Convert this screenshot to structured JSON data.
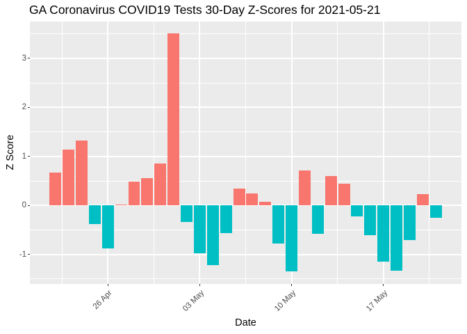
{
  "chart_data": {
    "type": "bar",
    "title": "GA Coronavirus COVID19 Tests 30-Day Z-Scores for 2021-05-21",
    "xlabel": "Date",
    "ylabel": "Z Score",
    "x": [
      "2021-04-22",
      "2021-04-23",
      "2021-04-24",
      "2021-04-25",
      "2021-04-26",
      "2021-04-27",
      "2021-04-28",
      "2021-04-29",
      "2021-04-30",
      "2021-05-01",
      "2021-05-02",
      "2021-05-03",
      "2021-05-04",
      "2021-05-05",
      "2021-05-06",
      "2021-05-07",
      "2021-05-08",
      "2021-05-09",
      "2021-05-10",
      "2021-05-11",
      "2021-05-12",
      "2021-05-13",
      "2021-05-14",
      "2021-05-15",
      "2021-05-16",
      "2021-05-17",
      "2021-05-18",
      "2021-05-19",
      "2021-05-20",
      "2021-05-21"
    ],
    "values": [
      0.67,
      1.14,
      1.33,
      -0.38,
      -0.88,
      0.02,
      0.49,
      0.56,
      0.86,
      3.51,
      -0.33,
      -0.97,
      -1.22,
      -0.57,
      0.35,
      0.25,
      0.07,
      -0.77,
      -1.34,
      0.71,
      -0.58,
      0.6,
      0.45,
      -0.23,
      -0.61,
      -1.14,
      -1.33,
      -0.71,
      0.23,
      -0.25
    ],
    "x_ticks": [
      {
        "label": "26 Apr",
        "index": 4
      },
      {
        "label": "03 May",
        "index": 11
      },
      {
        "label": "10 May",
        "index": 18
      },
      {
        "label": "17 May",
        "index": 25
      }
    ],
    "x_minor_indices": [
      0.5,
      7.5,
      14.5,
      21.5,
      28.5
    ],
    "y_major_ticks": [
      -1,
      0,
      1,
      2,
      3
    ],
    "y_minor_ticks": [
      -1.5,
      -0.5,
      0.5,
      1.5,
      2.5,
      3.5
    ],
    "ylim": [
      -1.6,
      3.75
    ],
    "grid": "on",
    "legend": "none",
    "colors": {
      "positive_bar": "#F8766D",
      "negative_bar": "#00BFC4",
      "panel_background": "#EBEBEB",
      "gridline": "#FFFFFF",
      "axis_text": "#4D4D4D",
      "tick_mark": "#333333",
      "title_text": "#000000"
    }
  }
}
